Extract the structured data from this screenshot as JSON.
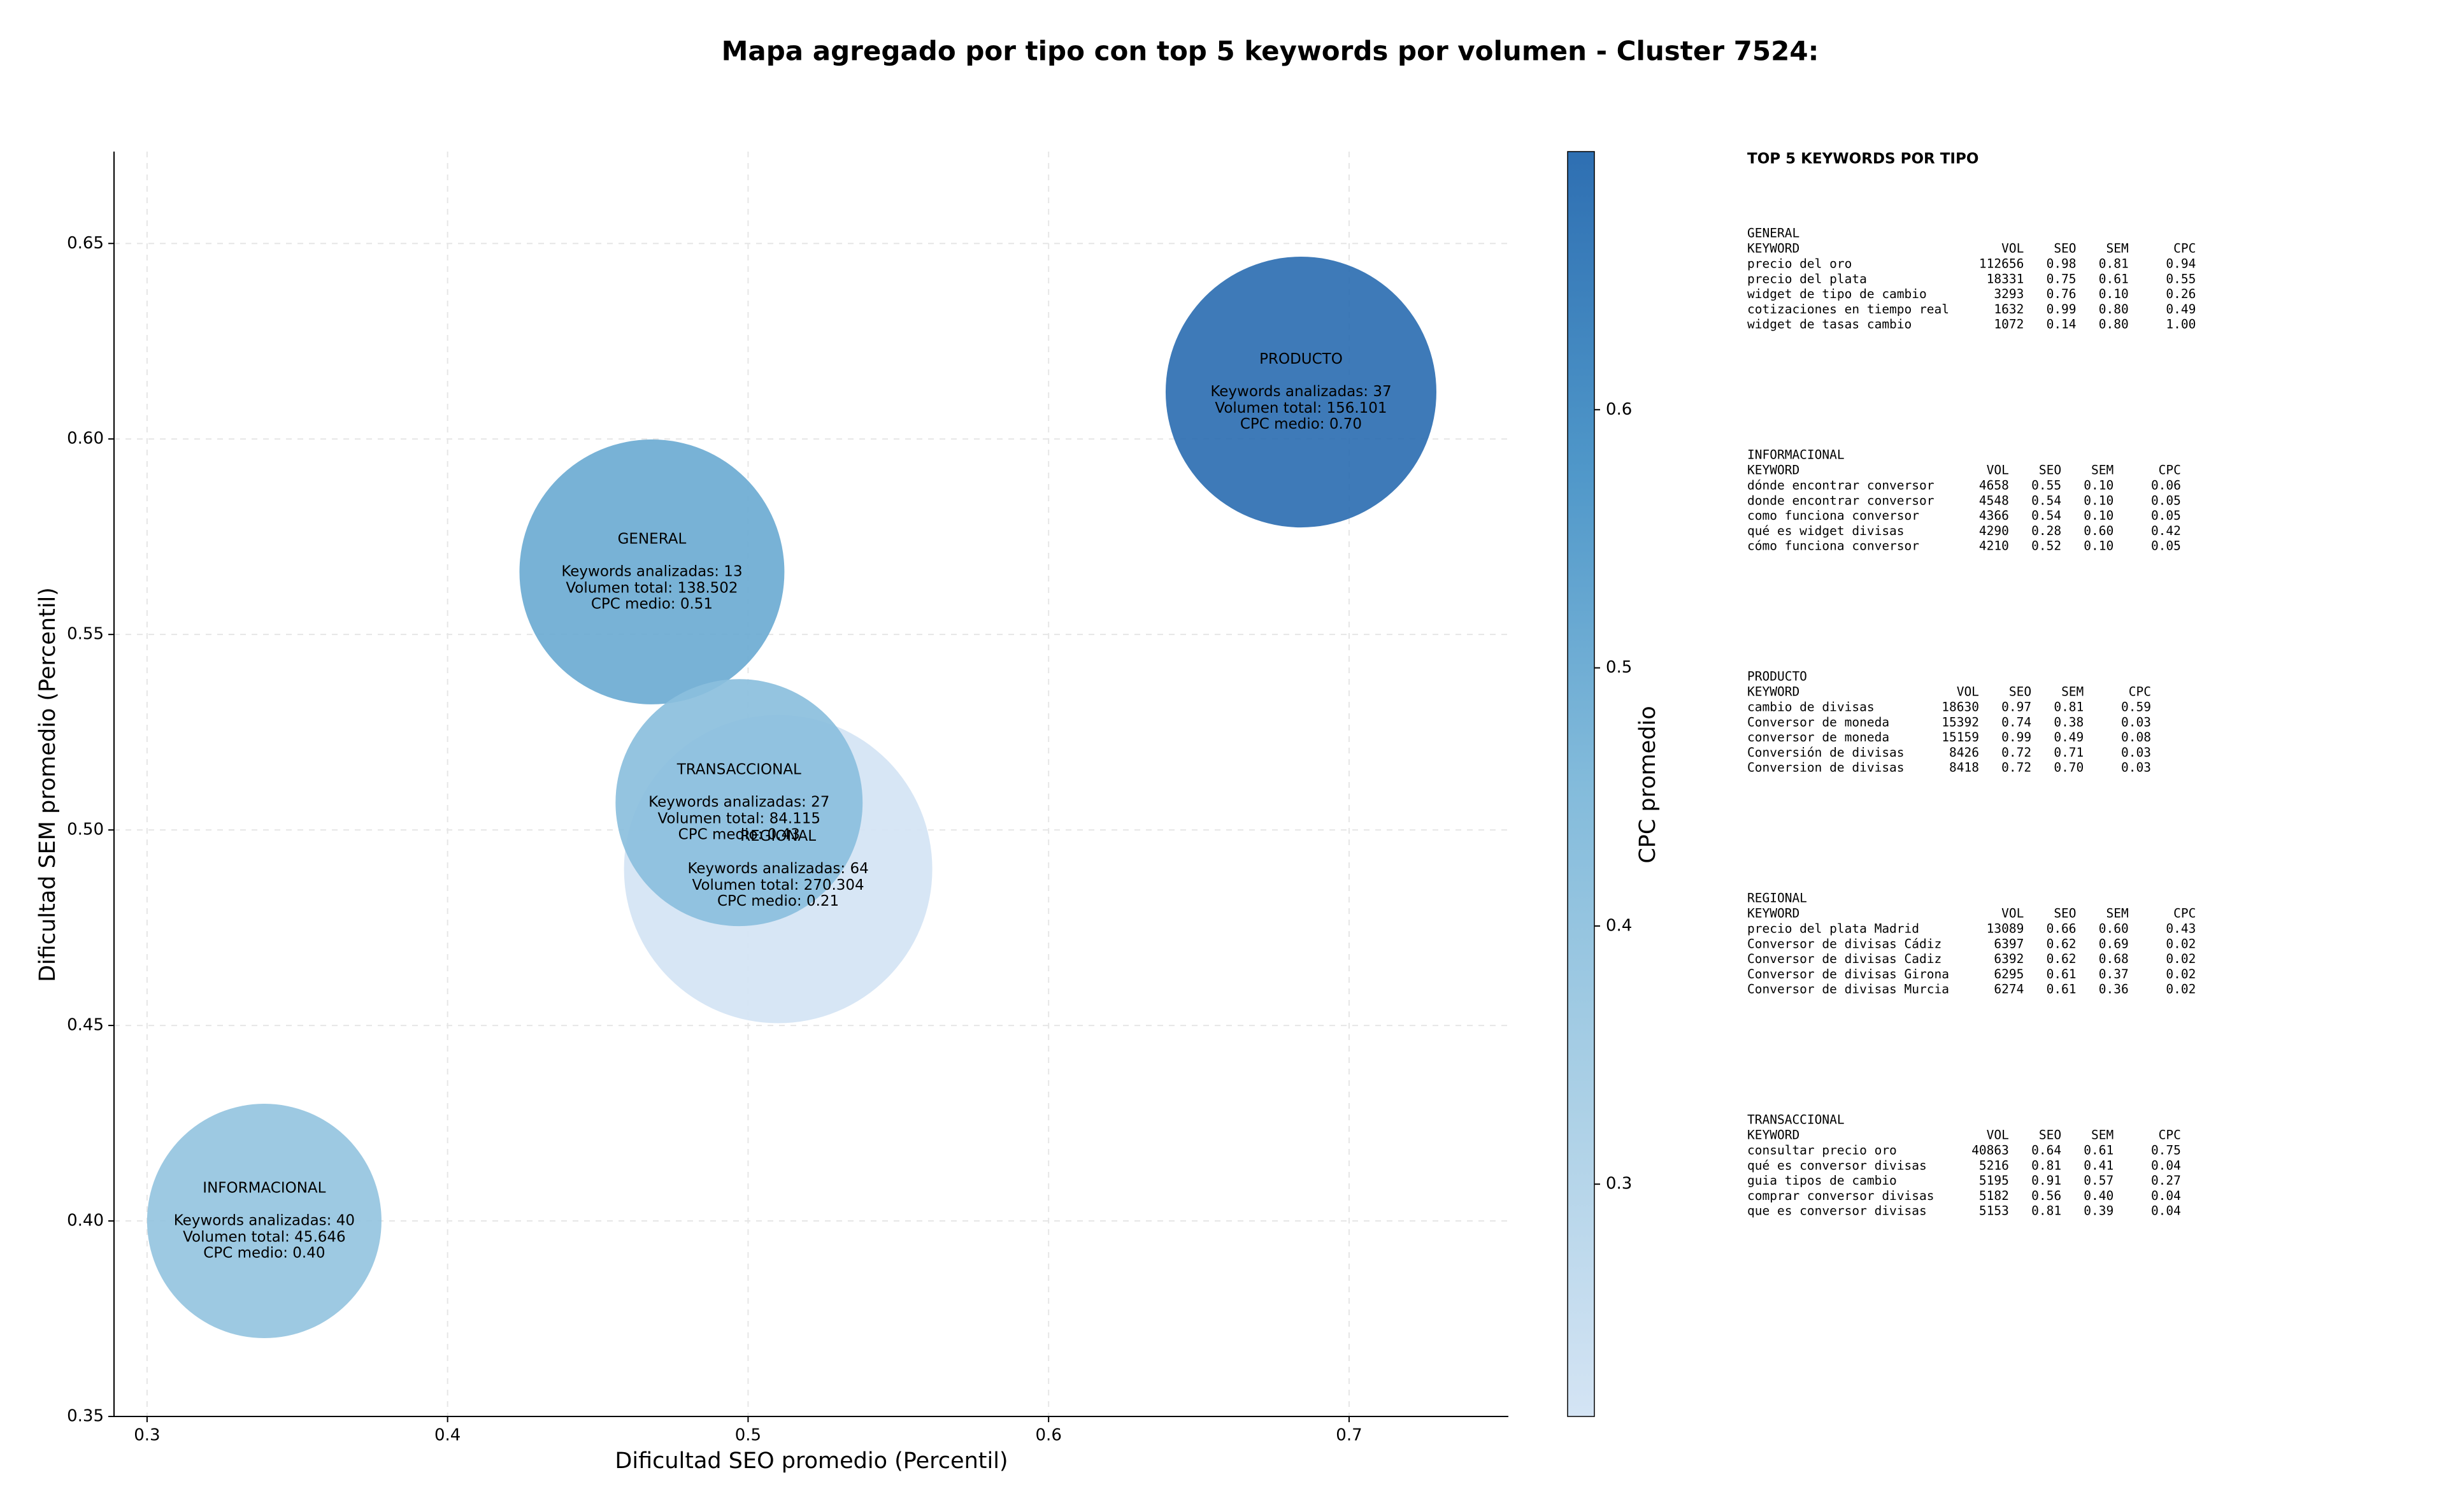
{
  "chart_data": {
    "type": "bubble",
    "title": "Mapa agregado por tipo con top 5 keywords por volumen - Cluster 7524:",
    "x_label": "Dificultad SEO promedio (Percentil)",
    "y_label": "Dificultad SEM promedio (Percentil)",
    "colorbar_label": "CPC promedio",
    "categories": [
      "GENERAL",
      "INFORMACIONAL",
      "PRODUCTO",
      "REGIONAL",
      "TRANSACCIONAL"
    ],
    "x": [
      0.468,
      0.339,
      0.684,
      0.51,
      0.497
    ],
    "values": [
      0.566,
      0.4,
      0.612,
      0.49,
      0.507
    ],
    "sizes": [
      138502,
      45646,
      156101,
      270304,
      84115
    ],
    "color_values": [
      0.51,
      0.4,
      0.7,
      0.21,
      0.43
    ],
    "annotations": [
      [
        "Keywords analizadas: 13",
        "Volumen total: 138.502",
        "CPC medio: 0.51"
      ],
      [
        "Keywords analizadas: 40",
        "Volumen total: 45.646",
        "CPC medio: 0.40"
      ],
      [
        "Keywords analizadas: 37",
        "Volumen total: 156.101",
        "CPC medio: 0.70"
      ],
      [
        "Keywords analizadas: 64",
        "Volumen total: 270.304",
        "CPC medio: 0.21"
      ],
      [
        "Keywords analizadas: 27",
        "Volumen total: 84.115",
        "CPC medio: 0.43"
      ]
    ],
    "xlim": [
      0.289,
      0.753
    ],
    "ylim": [
      0.35,
      0.6735
    ],
    "xticks": [
      0.3,
      0.4,
      0.5,
      0.6,
      0.7
    ],
    "yticks": [
      0.35,
      {
        "value": 0.4,
        "label": "0.40"
      },
      0.45,
      {
        "value": 0.5,
        "label": "0.50"
      },
      0.55,
      {
        "value": 0.6,
        "label": "0.60"
      },
      0.65
    ],
    "clim": [
      0.21,
      0.7
    ],
    "cticks": [
      0.3,
      0.4,
      0.5,
      0.6
    ],
    "colormap": [
      "#d4e4f4",
      "#abd0e6",
      "#83bbdb",
      "#4f97c9",
      "#2e6fb2"
    ],
    "grid": true
  },
  "keyword_panel": {
    "title": "TOP 5 KEYWORDS POR TIPO",
    "columns": [
      "KEYWORD",
      "VOL",
      "SEO",
      "SEM",
      "CPC"
    ],
    "groups": [
      {
        "name": "GENERAL",
        "rows": [
          [
            "precio del oro",
            "112656",
            "0.98",
            "0.81",
            "0.94"
          ],
          [
            "precio del plata",
            "18331",
            "0.75",
            "0.61",
            "0.55"
          ],
          [
            "widget de tipo de cambio",
            "3293",
            "0.76",
            "0.10",
            "0.26"
          ],
          [
            "cotizaciones en tiempo real",
            "1632",
            "0.99",
            "0.80",
            "0.49"
          ],
          [
            "widget de tasas cambio",
            "1072",
            "0.14",
            "0.80",
            "1.00"
          ]
        ]
      },
      {
        "name": "INFORMACIONAL",
        "rows": [
          [
            "dónde encontrar conversor",
            "4658",
            "0.55",
            "0.10",
            "0.06"
          ],
          [
            "donde encontrar conversor",
            "4548",
            "0.54",
            "0.10",
            "0.05"
          ],
          [
            "como funciona conversor",
            "4366",
            "0.54",
            "0.10",
            "0.05"
          ],
          [
            "qué es widget divisas",
            "4290",
            "0.28",
            "0.60",
            "0.42"
          ],
          [
            "cómo funciona conversor",
            "4210",
            "0.52",
            "0.10",
            "0.05"
          ]
        ]
      },
      {
        "name": "PRODUCTO",
        "rows": [
          [
            "cambio de divisas",
            "18630",
            "0.97",
            "0.81",
            "0.59"
          ],
          [
            "Conversor de moneda",
            "15392",
            "0.74",
            "0.38",
            "0.03"
          ],
          [
            "conversor de moneda",
            "15159",
            "0.99",
            "0.49",
            "0.08"
          ],
          [
            "Conversión de divisas",
            "8426",
            "0.72",
            "0.71",
            "0.03"
          ],
          [
            "Conversion de divisas",
            "8418",
            "0.72",
            "0.70",
            "0.03"
          ]
        ]
      },
      {
        "name": "REGIONAL",
        "rows": [
          [
            "precio del plata Madrid",
            "13089",
            "0.66",
            "0.60",
            "0.43"
          ],
          [
            "Conversor de divisas Cádiz",
            "6397",
            "0.62",
            "0.69",
            "0.02"
          ],
          [
            "Conversor de divisas Cadiz",
            "6392",
            "0.62",
            "0.68",
            "0.02"
          ],
          [
            "Conversor de divisas Girona",
            "6295",
            "0.61",
            "0.37",
            "0.02"
          ],
          [
            "Conversor de divisas Murcia",
            "6274",
            "0.61",
            "0.36",
            "0.02"
          ]
        ]
      },
      {
        "name": "TRANSACCIONAL",
        "rows": [
          [
            "consultar precio oro",
            "40863",
            "0.64",
            "0.61",
            "0.75"
          ],
          [
            "qué es conversor divisas",
            "5216",
            "0.81",
            "0.41",
            "0.04"
          ],
          [
            "guia tipos de cambio",
            "5195",
            "0.91",
            "0.57",
            "0.27"
          ],
          [
            "comprar conversor divisas",
            "5182",
            "0.56",
            "0.40",
            "0.04"
          ],
          [
            "que es conversor divisas",
            "5153",
            "0.81",
            "0.39",
            "0.04"
          ]
        ]
      }
    ]
  }
}
